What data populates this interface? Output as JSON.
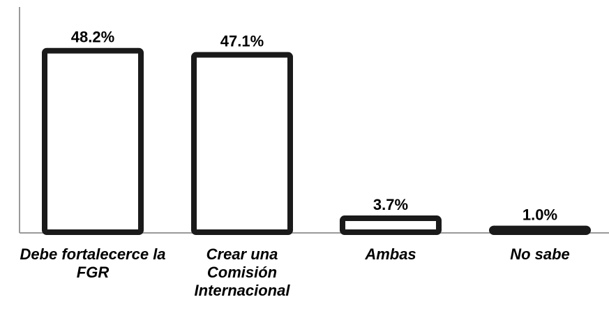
{
  "chart_data": {
    "type": "bar",
    "categories": [
      "Debe fortalecerce la FGR",
      "Crear una Comisión Internacional",
      "Ambas",
      "No sabe"
    ],
    "values": [
      48.2,
      47.1,
      3.7,
      1.0
    ],
    "value_labels": [
      "48.2%",
      "47.1%",
      "3.7%",
      "1.0%"
    ],
    "color": "#ffffff",
    "edge_color": "#1a1a1a"
  }
}
